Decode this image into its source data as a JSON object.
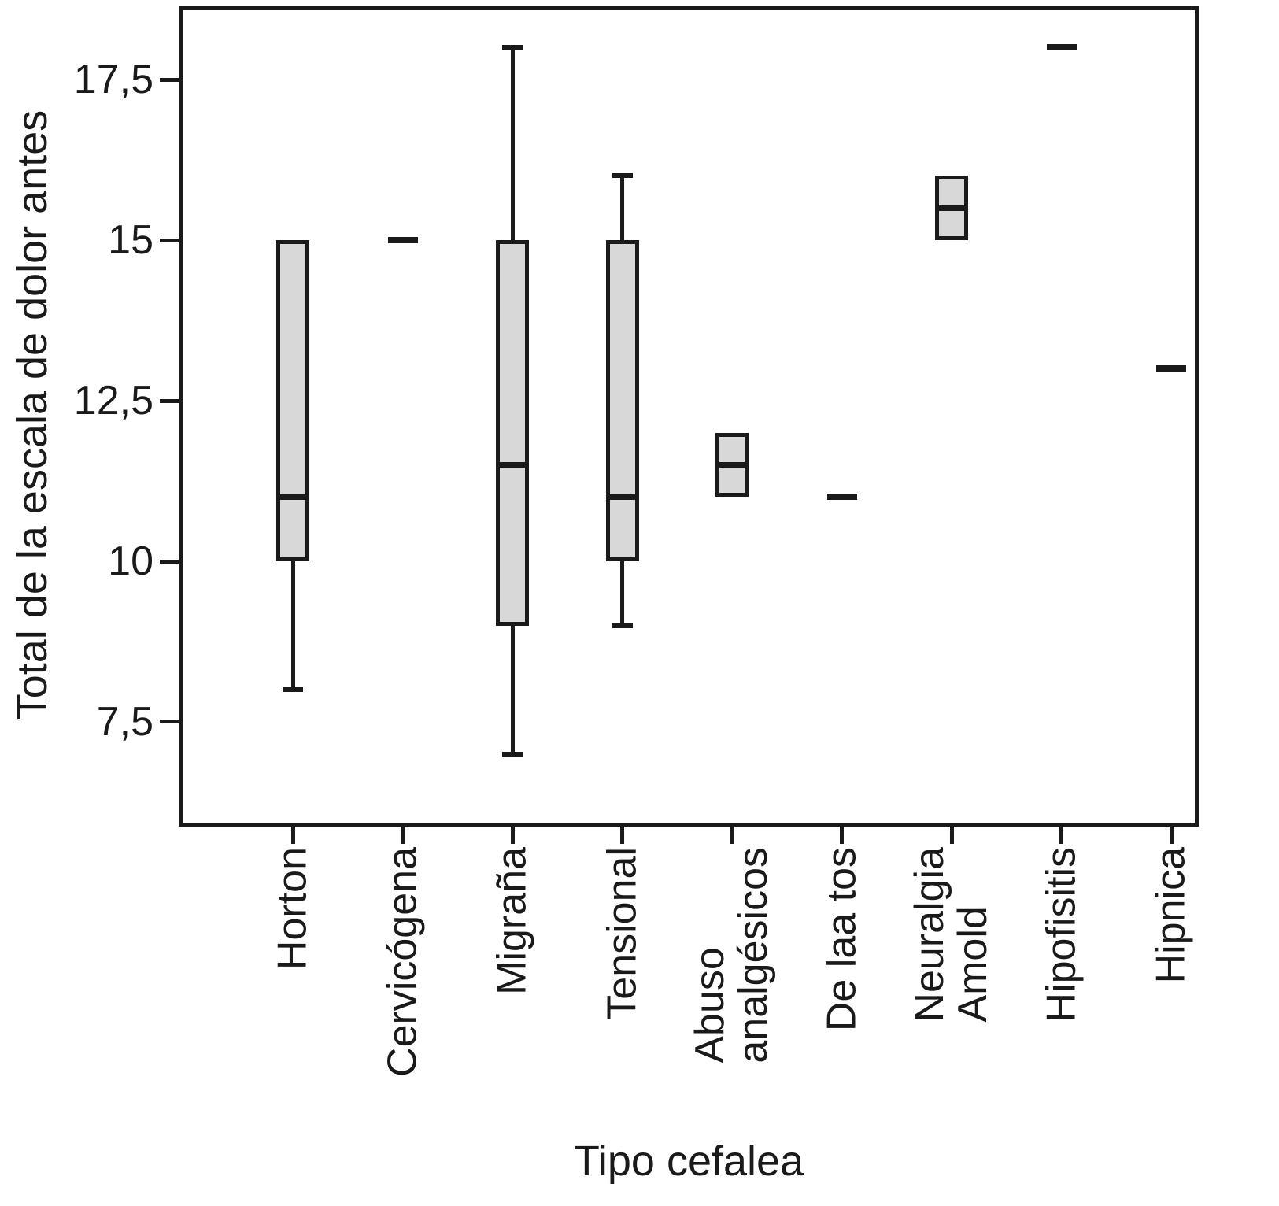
{
  "chart_data": {
    "type": "boxplot",
    "title": "",
    "xlabel": "Tipo cefalea",
    "ylabel": "Total de la escala de dolor antes",
    "ylim": [
      5.87,
      18.64
    ],
    "grid": false,
    "legend": "none",
    "decimal_separator": ",",
    "y_ticks": [
      {
        "value": 17.5,
        "label": "17,5"
      },
      {
        "value": 15,
        "label": "15"
      },
      {
        "value": 12.5,
        "label": "12,5"
      },
      {
        "value": 10,
        "label": "10"
      },
      {
        "value": 7.5,
        "label": "7,5"
      }
    ],
    "categories": [
      "Horton",
      "Cervicógena",
      "Migraña",
      "Tensional",
      "Abuso\nanalgésicos",
      "De laa tos",
      "Neuralgia\nAmold",
      "Hipofisitis",
      "Hipnica"
    ],
    "series": [
      {
        "name": "Horton",
        "min": 8,
        "q1": 10,
        "median": 11,
        "q3": 15,
        "max": 15
      },
      {
        "name": "Cervicógena",
        "value": 15
      },
      {
        "name": "Migraña",
        "min": 7,
        "q1": 9,
        "median": 11.5,
        "q3": 15,
        "max": 18
      },
      {
        "name": "Tensional",
        "min": 9,
        "q1": 10,
        "median": 11,
        "q3": 15,
        "max": 16
      },
      {
        "name": "Abuso analgésicos",
        "min": 11,
        "q1": 11,
        "median": 11.5,
        "q3": 12,
        "max": 12
      },
      {
        "name": "De laa tos",
        "value": 11
      },
      {
        "name": "Neuralgia Amold",
        "min": 15,
        "q1": 15,
        "median": 15.5,
        "q3": 16,
        "max": 16
      },
      {
        "name": "Hipofisitis",
        "value": 18
      },
      {
        "name": "Hipnica",
        "value": 13
      }
    ],
    "colors": {
      "box_fill": "#d8d8d8",
      "stroke": "#1a1a1a",
      "background": "#ffffff"
    }
  }
}
